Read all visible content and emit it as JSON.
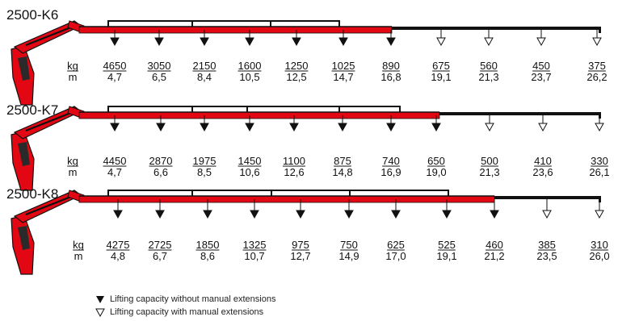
{
  "colors": {
    "boom_red": "#e30613",
    "ink": "#111111"
  },
  "units": {
    "kg": "kg",
    "m": "m"
  },
  "models": [
    {
      "name": "2500-K6",
      "kg": [
        "4650",
        "3050",
        "2150",
        "1600",
        "1250",
        "1025",
        "890",
        "675",
        "560",
        "450",
        "375"
      ],
      "m": [
        "4,7",
        "6,5",
        "8,4",
        "10,5",
        "12,5",
        "14,7",
        "16,8",
        "19,1",
        "21,3",
        "23,7",
        "26,2"
      ],
      "markers": [
        "filled",
        "filled",
        "filled",
        "filled",
        "filled",
        "filled",
        "filled",
        "open",
        "open",
        "open",
        "open"
      ]
    },
    {
      "name": "2500-K7",
      "kg": [
        "4450",
        "2870",
        "1975",
        "1450",
        "1100",
        "875",
        "740",
        "650",
        "500",
        "410",
        "330"
      ],
      "m": [
        "4,7",
        "6,6",
        "8,5",
        "10,6",
        "12,6",
        "14,8",
        "16,9",
        "19,0",
        "21,3",
        "23,6",
        "26,1"
      ],
      "markers": [
        "filled",
        "filled",
        "filled",
        "filled",
        "filled",
        "filled",
        "filled",
        "filled",
        "open",
        "open",
        "open"
      ]
    },
    {
      "name": "2500-K8",
      "kg": [
        "4275",
        "2725",
        "1850",
        "1325",
        "975",
        "750",
        "625",
        "525",
        "460",
        "385",
        "310"
      ],
      "m": [
        "4,8",
        "6,7",
        "8,6",
        "10,7",
        "12,7",
        "14,9",
        "17,0",
        "19,1",
        "21,2",
        "23,5",
        "26,0"
      ],
      "markers": [
        "filled",
        "filled",
        "filled",
        "filled",
        "filled",
        "filled",
        "filled",
        "filled",
        "filled",
        "open",
        "open"
      ]
    }
  ],
  "legend": {
    "filled_label": "Lifting capacity without manual extensions",
    "open_label": "Lifting capacity with manual extensions"
  }
}
